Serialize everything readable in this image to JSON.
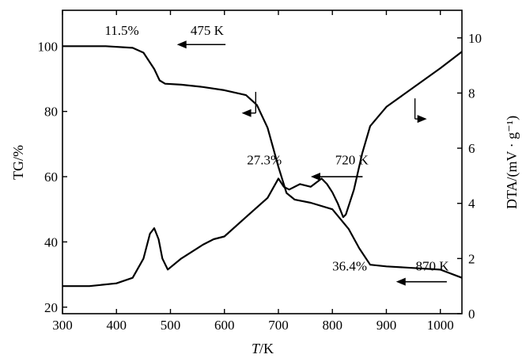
{
  "chart_data": {
    "type": "line",
    "x_axis": {
      "label_italic": "T",
      "label_unit": "/K",
      "min": 300,
      "max": 1040,
      "ticks": [
        300,
        400,
        500,
        600,
        700,
        800,
        900,
        1000
      ]
    },
    "y_axis_left": {
      "label": "TG/%",
      "min": 18,
      "max": 111,
      "ticks": [
        20,
        40,
        60,
        80,
        100
      ]
    },
    "y_axis_right": {
      "label": "DTA/(mV · g⁻¹)",
      "min": 0,
      "max": 11,
      "ticks": [
        0,
        2,
        4,
        6,
        8,
        10
      ]
    },
    "series": [
      {
        "axis": "left",
        "color": "#000000",
        "x": [
          300,
          380,
          430,
          450,
          470,
          480,
          490,
          520,
          560,
          600,
          640,
          660,
          680,
          700,
          715,
          730,
          760,
          800,
          830,
          850,
          870,
          900,
          950,
          1000,
          1040
        ],
        "y": [
          100,
          100,
          99.5,
          98,
          93,
          89.5,
          88.5,
          88.2,
          87.5,
          86.5,
          85,
          82,
          75,
          63,
          55,
          53,
          52,
          50,
          44,
          38,
          33,
          32.5,
          32,
          31.5,
          29
        ]
      },
      {
        "axis": "right",
        "color": "#000000",
        "x": [
          300,
          350,
          400,
          430,
          450,
          462,
          470,
          478,
          485,
          495,
          520,
          560,
          580,
          600,
          640,
          680,
          700,
          710,
          720,
          740,
          760,
          780,
          790,
          800,
          810,
          820,
          825,
          840,
          855,
          870,
          900,
          950,
          1000,
          1040
        ],
        "y": [
          1.0,
          1.0,
          1.1,
          1.3,
          2.0,
          2.9,
          3.1,
          2.7,
          2.0,
          1.6,
          2.0,
          2.5,
          2.7,
          2.8,
          3.5,
          4.2,
          4.9,
          4.6,
          4.5,
          4.7,
          4.6,
          4.9,
          4.7,
          4.4,
          4.0,
          3.5,
          3.6,
          4.5,
          5.8,
          6.8,
          7.5,
          8.2,
          8.9,
          9.5
        ]
      }
    ],
    "annotations": [
      {
        "text": "11.5%",
        "x": 410,
        "y_left": 103.5
      },
      {
        "text": "475 K",
        "x": 568,
        "y_left": 103.5,
        "arrow_from": 602,
        "arrow_to": 512,
        "arrow_y": 100.5
      },
      {
        "text": "27.3%",
        "x": 674,
        "y_left": 63.8
      },
      {
        "text": "720 K",
        "x": 836,
        "y_left": 63.8,
        "arrow_from": 856,
        "arrow_to": 760,
        "arrow_y": 60
      },
      {
        "text": "36.4%",
        "x": 832,
        "y_left": 31.2
      },
      {
        "text": "870 K",
        "x": 985,
        "y_left": 31.2,
        "arrow_from": 1012,
        "arrow_to": 918,
        "arrow_y": 27.8
      },
      {
        "marker": "left-arrow",
        "x_from": 658,
        "x_to": 632,
        "y_top": 86,
        "y_bottom": 79.5
      },
      {
        "marker": "right-arrow",
        "x_from": 953,
        "x_to": 975,
        "y_top": 84,
        "y_bottom": 77.7
      }
    ]
  }
}
